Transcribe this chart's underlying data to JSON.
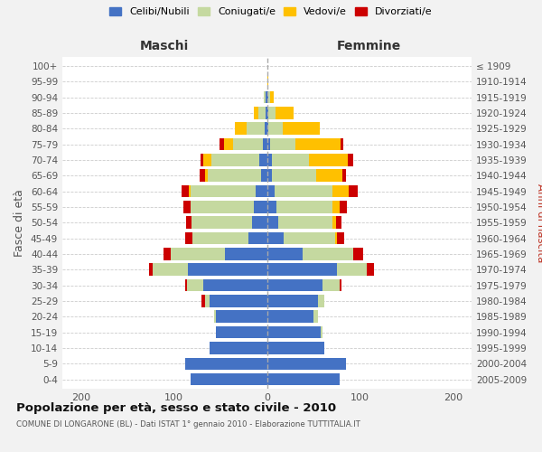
{
  "age_groups": [
    "0-4",
    "5-9",
    "10-14",
    "15-19",
    "20-24",
    "25-29",
    "30-34",
    "35-39",
    "40-44",
    "45-49",
    "50-54",
    "55-59",
    "60-64",
    "65-69",
    "70-74",
    "75-79",
    "80-84",
    "85-89",
    "90-94",
    "95-99",
    "100+"
  ],
  "birth_years": [
    "2005-2009",
    "2000-2004",
    "1995-1999",
    "1990-1994",
    "1985-1989",
    "1980-1984",
    "1975-1979",
    "1970-1974",
    "1965-1969",
    "1960-1964",
    "1955-1959",
    "1950-1954",
    "1945-1949",
    "1940-1944",
    "1935-1939",
    "1930-1934",
    "1925-1929",
    "1920-1924",
    "1915-1919",
    "1910-1914",
    "≤ 1909"
  ],
  "maschi": {
    "celibi": [
      82,
      88,
      62,
      55,
      55,
      62,
      68,
      85,
      45,
      20,
      16,
      14,
      12,
      6,
      8,
      4,
      2,
      1,
      1,
      0,
      0
    ],
    "coniugati": [
      0,
      0,
      0,
      0,
      2,
      5,
      18,
      38,
      58,
      60,
      65,
      68,
      70,
      58,
      52,
      32,
      20,
      8,
      2,
      0,
      0
    ],
    "vedovi": [
      0,
      0,
      0,
      0,
      0,
      0,
      0,
      0,
      0,
      0,
      0,
      0,
      2,
      3,
      8,
      10,
      12,
      5,
      0,
      0,
      0
    ],
    "divorziati": [
      0,
      0,
      0,
      0,
      0,
      3,
      2,
      4,
      8,
      8,
      6,
      8,
      8,
      5,
      3,
      5,
      0,
      0,
      0,
      0,
      0
    ]
  },
  "femmine": {
    "nubili": [
      78,
      85,
      62,
      58,
      50,
      55,
      60,
      75,
      38,
      18,
      12,
      10,
      8,
      5,
      5,
      3,
      1,
      1,
      1,
      0,
      0
    ],
    "coniugate": [
      0,
      0,
      0,
      2,
      5,
      7,
      18,
      32,
      55,
      55,
      58,
      60,
      62,
      48,
      40,
      28,
      16,
      8,
      2,
      0,
      0
    ],
    "vedove": [
      0,
      0,
      0,
      0,
      0,
      0,
      0,
      0,
      0,
      2,
      4,
      8,
      18,
      28,
      42,
      48,
      40,
      20,
      4,
      1,
      0
    ],
    "divorziate": [
      0,
      0,
      0,
      0,
      0,
      0,
      2,
      8,
      10,
      8,
      6,
      8,
      10,
      4,
      6,
      3,
      0,
      0,
      0,
      0,
      0
    ]
  },
  "colors": {
    "celibe": "#4472c4",
    "coniugato": "#c5d9a0",
    "vedovo": "#ffc000",
    "divorziato": "#cc0000"
  },
  "xlim": 220,
  "title": "Popolazione per età, sesso e stato civile - 2010",
  "subtitle": "COMUNE DI LONGARONE (BL) - Dati ISTAT 1° gennaio 2010 - Elaborazione TUTTITALIA.IT",
  "ylabel_left": "Fasce di età",
  "ylabel_right": "Anni di nascita",
  "xlabel_left": "Maschi",
  "xlabel_right": "Femmine",
  "bg_color": "#f2f2f2",
  "plot_bg": "#ffffff"
}
